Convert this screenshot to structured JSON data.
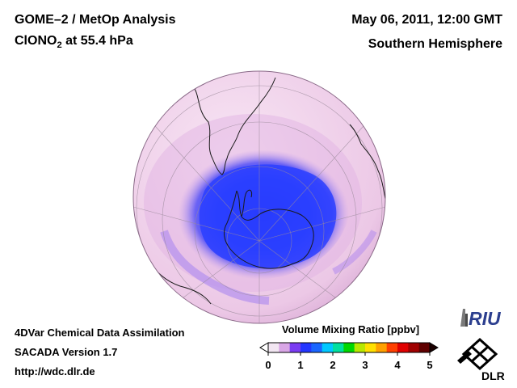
{
  "header": {
    "title_line1": "GOME–2 / MetOp Analysis",
    "species_main": "ClONO",
    "species_sub": "2",
    "species_rest": " at 55.4 hPa",
    "date": "May 06, 2011, 12:00 GMT",
    "hemisphere": "Southern Hemisphere"
  },
  "footer": {
    "line1": "4DVar Chemical Data Assimilation",
    "line2": "SACADA Version 1.7",
    "line3": "http://wdc.dlr.de"
  },
  "colorbar": {
    "title": "Volume Mixing Ratio [ppbv]",
    "ticks": [
      "0",
      "1",
      "2",
      "3",
      "4",
      "5"
    ],
    "colors": [
      "#f2e6f2",
      "#d9a6e6",
      "#7a3cf2",
      "#2436ff",
      "#1a66ff",
      "#00c8ff",
      "#00e0a0",
      "#00d800",
      "#b8e800",
      "#ffe000",
      "#ffa000",
      "#ff4000",
      "#e00000",
      "#a00000",
      "#600000"
    ]
  },
  "logos": {
    "riu": "RIU",
    "dlr": "DLR"
  },
  "map": {
    "projection": "orthographic, south pole view",
    "low_color": "#2f4aff",
    "background_color": "#f0d8ec"
  }
}
